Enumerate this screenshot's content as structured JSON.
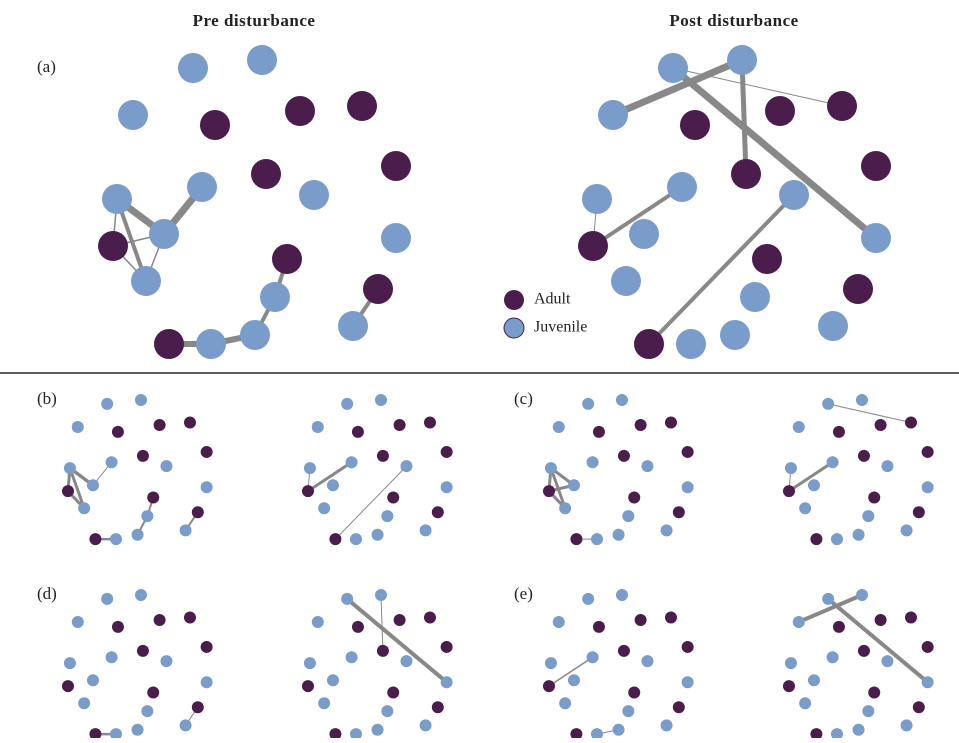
{
  "titles": {
    "pre": "Pre disturbance",
    "post": "Post disturbance"
  },
  "panels": [
    "(a)",
    "(b)",
    "(c)",
    "(d)",
    "(e)"
  ],
  "legend": {
    "adult": "Adult",
    "juvenile": "Juvenile"
  }
}
